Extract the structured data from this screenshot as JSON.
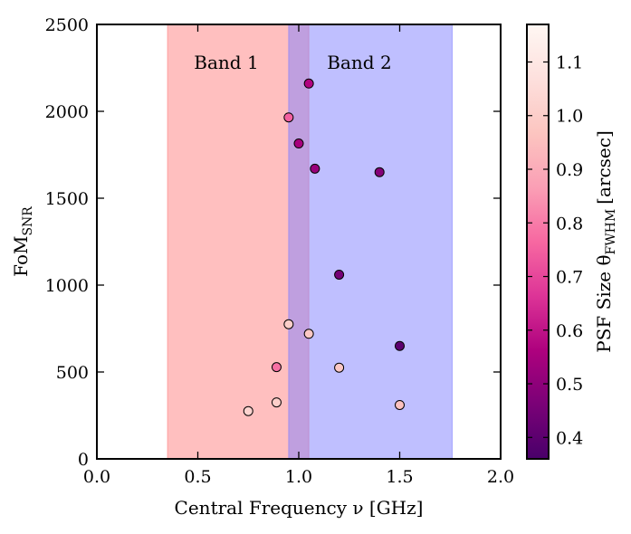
{
  "chart_data": {
    "type": "scatter",
    "xlabel": "Central Frequency ν [GHz]",
    "ylabel": "FoM",
    "ylabel_subscript": "SNR",
    "xlim": [
      0.0,
      2.0
    ],
    "ylim": [
      0,
      2500
    ],
    "x_ticks": [
      "0.0",
      "0.5",
      "1.0",
      "1.5",
      "2.0"
    ],
    "y_ticks": [
      "0",
      "500",
      "1000",
      "1500",
      "2000",
      "2500"
    ],
    "bands": [
      {
        "name": "Band 1",
        "range": [
          0.35,
          1.05
        ],
        "color": "#ff8080"
      },
      {
        "name": "Band 2",
        "range": [
          0.95,
          1.76
        ],
        "color": "#8080ff"
      }
    ],
    "points": [
      {
        "x": 0.75,
        "y": 275,
        "psf": 1.02
      },
      {
        "x": 0.89,
        "y": 325,
        "psf": 1.0
      },
      {
        "x": 0.89,
        "y": 528,
        "psf": 0.78
      },
      {
        "x": 0.95,
        "y": 775,
        "psf": 1.0
      },
      {
        "x": 1.05,
        "y": 720,
        "psf": 0.98
      },
      {
        "x": 1.2,
        "y": 525,
        "psf": 0.98
      },
      {
        "x": 1.5,
        "y": 310,
        "psf": 0.96
      },
      {
        "x": 0.95,
        "y": 1965,
        "psf": 0.75
      },
      {
        "x": 1.05,
        "y": 2160,
        "psf": 0.57
      },
      {
        "x": 1.0,
        "y": 1815,
        "psf": 0.55
      },
      {
        "x": 1.08,
        "y": 1670,
        "psf": 0.52
      },
      {
        "x": 1.4,
        "y": 1650,
        "psf": 0.48
      },
      {
        "x": 1.2,
        "y": 1060,
        "psf": 0.45
      },
      {
        "x": 1.5,
        "y": 650,
        "psf": 0.4
      }
    ],
    "colorbar": {
      "label": "PSF Size θ",
      "label_subscript": "FWHM",
      "label_unit": "[arcsec]",
      "range": [
        0.36,
        1.17
      ],
      "ticks": [
        "0.4",
        "0.5",
        "0.6",
        "0.7",
        "0.8",
        "0.9",
        "1.0",
        "1.1"
      ],
      "colors": [
        "#49006a",
        "#7a0177",
        "#ae017e",
        "#dd3497",
        "#f768a1",
        "#fa9fb5",
        "#fcc5c0",
        "#fde0dd",
        "#fff7f3"
      ]
    }
  }
}
